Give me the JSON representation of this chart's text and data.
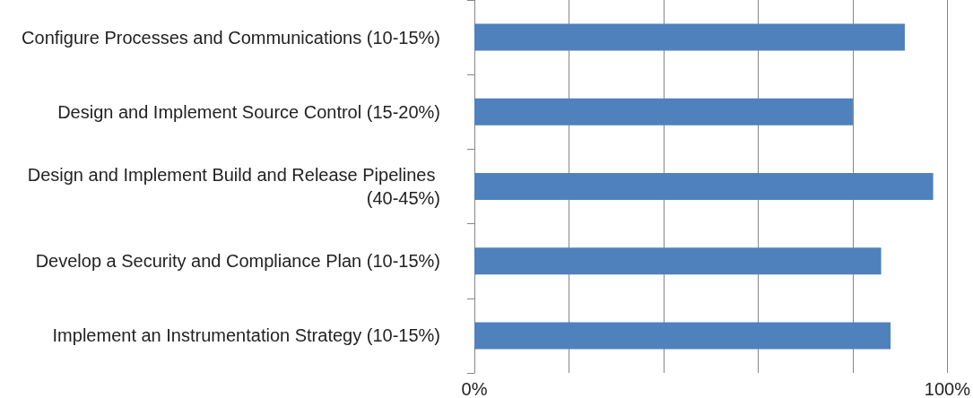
{
  "chart_data": {
    "type": "bar",
    "orientation": "horizontal",
    "categories": [
      "Configure Processes and Communications (10-15%)",
      "Design and Implement Source Control (15-20%)",
      "Design and Implement Build and Release Pipelines (40-45%)",
      "Develop a Security and Compliance Plan (10-15%)",
      "Implement an Instrumentation Strategy (10-15%)"
    ],
    "values": [
      91,
      80,
      97,
      86,
      88
    ],
    "color": "#4f81bd",
    "xlim": [
      0,
      100
    ],
    "xticks": [
      {
        "value": 0,
        "label": "0%"
      },
      {
        "value": 20,
        "label": null
      },
      {
        "value": 40,
        "label": null
      },
      {
        "value": 60,
        "label": null
      },
      {
        "value": 80,
        "label": null
      },
      {
        "value": 100,
        "label": "100%"
      }
    ],
    "grid": "x"
  }
}
